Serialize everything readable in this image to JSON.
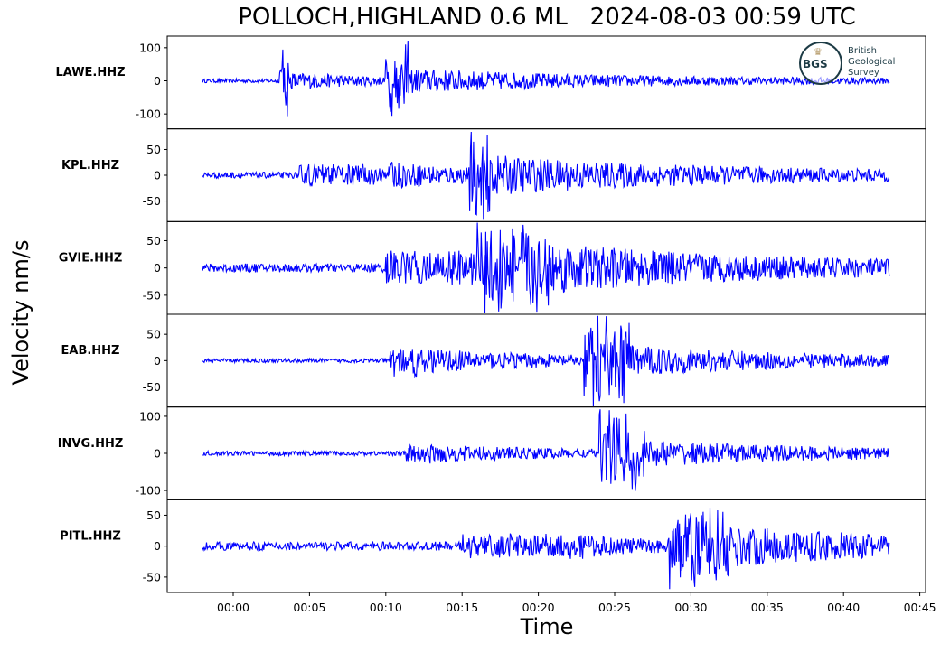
{
  "chart_data": {
    "type": "line",
    "title": "POLLOCH,HIGHLAND 0.6 ML   2024-08-03 00:59 UTC",
    "xlabel": "Time",
    "ylabel": "Velocity nm/s",
    "x_ticks": [
      "00:00",
      "00:05",
      "00:10",
      "00:15",
      "00:20",
      "00:25",
      "00:30",
      "00:35",
      "00:40",
      "00:45"
    ],
    "xlim_seconds": [
      -4.3,
      45.3
    ],
    "trace_span_seconds": [
      -2,
      43
    ],
    "line_color": "#0000ff",
    "grid": false,
    "series": [
      {
        "name": "LAWE.HHZ",
        "yticks": [
          100,
          0,
          -100
        ],
        "ylim": [
          -145,
          135
        ],
        "noise": 6,
        "events": [
          {
            "t": 3.0,
            "amp": 120,
            "dur": 0.6,
            "coda_amp": 22,
            "coda_dur": 6
          },
          {
            "t": 10.0,
            "amp": 115,
            "dur": 1.5,
            "coda_amp": 28,
            "coda_dur": 15
          }
        ]
      },
      {
        "name": "KPL.HHZ",
        "yticks": [
          50,
          0,
          -50
        ],
        "ylim": [
          -90,
          90
        ],
        "noise": 6,
        "events": [
          {
            "t": 4.3,
            "amp": 18,
            "dur": 6,
            "coda_amp": 20,
            "coda_dur": 8
          },
          {
            "t": 15.5,
            "amp": 82,
            "dur": 1.5,
            "coda_amp": 25,
            "coda_dur": 18
          }
        ]
      },
      {
        "name": "GVIE.HHZ",
        "yticks": [
          50,
          0,
          -50
        ],
        "ylim": [
          -85,
          85
        ],
        "noise": 8,
        "events": [
          {
            "t": 10.0,
            "amp": 30,
            "dur": 5,
            "coda_amp": 25,
            "coda_dur": 6
          },
          {
            "t": 16.0,
            "amp": 70,
            "dur": 5,
            "coda_amp": 30,
            "coda_dur": 18
          }
        ]
      },
      {
        "name": "EAB.HHZ",
        "yticks": [
          50,
          0,
          -50
        ],
        "ylim": [
          -88,
          88
        ],
        "noise": 4,
        "events": [
          {
            "t": 10.3,
            "amp": 30,
            "dur": 2,
            "coda_amp": 20,
            "coda_dur": 10
          },
          {
            "t": 23.0,
            "amp": 85,
            "dur": 3,
            "coda_amp": 20,
            "coda_dur": 15
          }
        ]
      },
      {
        "name": "INVG.HHZ",
        "yticks": [
          100,
          0,
          -100
        ],
        "ylim": [
          -125,
          125
        ],
        "noise": 6,
        "events": [
          {
            "t": 11.3,
            "amp": 25,
            "dur": 2,
            "coda_amp": 18,
            "coda_dur": 10
          },
          {
            "t": 24.0,
            "amp": 120,
            "dur": 3,
            "coda_amp": 25,
            "coda_dur": 15
          }
        ]
      },
      {
        "name": "PITL.HHZ",
        "yticks": [
          50,
          0,
          -50
        ],
        "ylim": [
          -75,
          75
        ],
        "noise": 7,
        "events": [
          {
            "t": 15.0,
            "amp": 15,
            "dur": 8,
            "coda_amp": 12,
            "coda_dur": 5
          },
          {
            "t": 28.5,
            "amp": 70,
            "dur": 4,
            "coda_amp": 25,
            "coda_dur": 14
          }
        ]
      }
    ]
  },
  "logo": {
    "abbr": "BGS",
    "line1": "British",
    "line2": "Geological",
    "line3": "Survey"
  }
}
